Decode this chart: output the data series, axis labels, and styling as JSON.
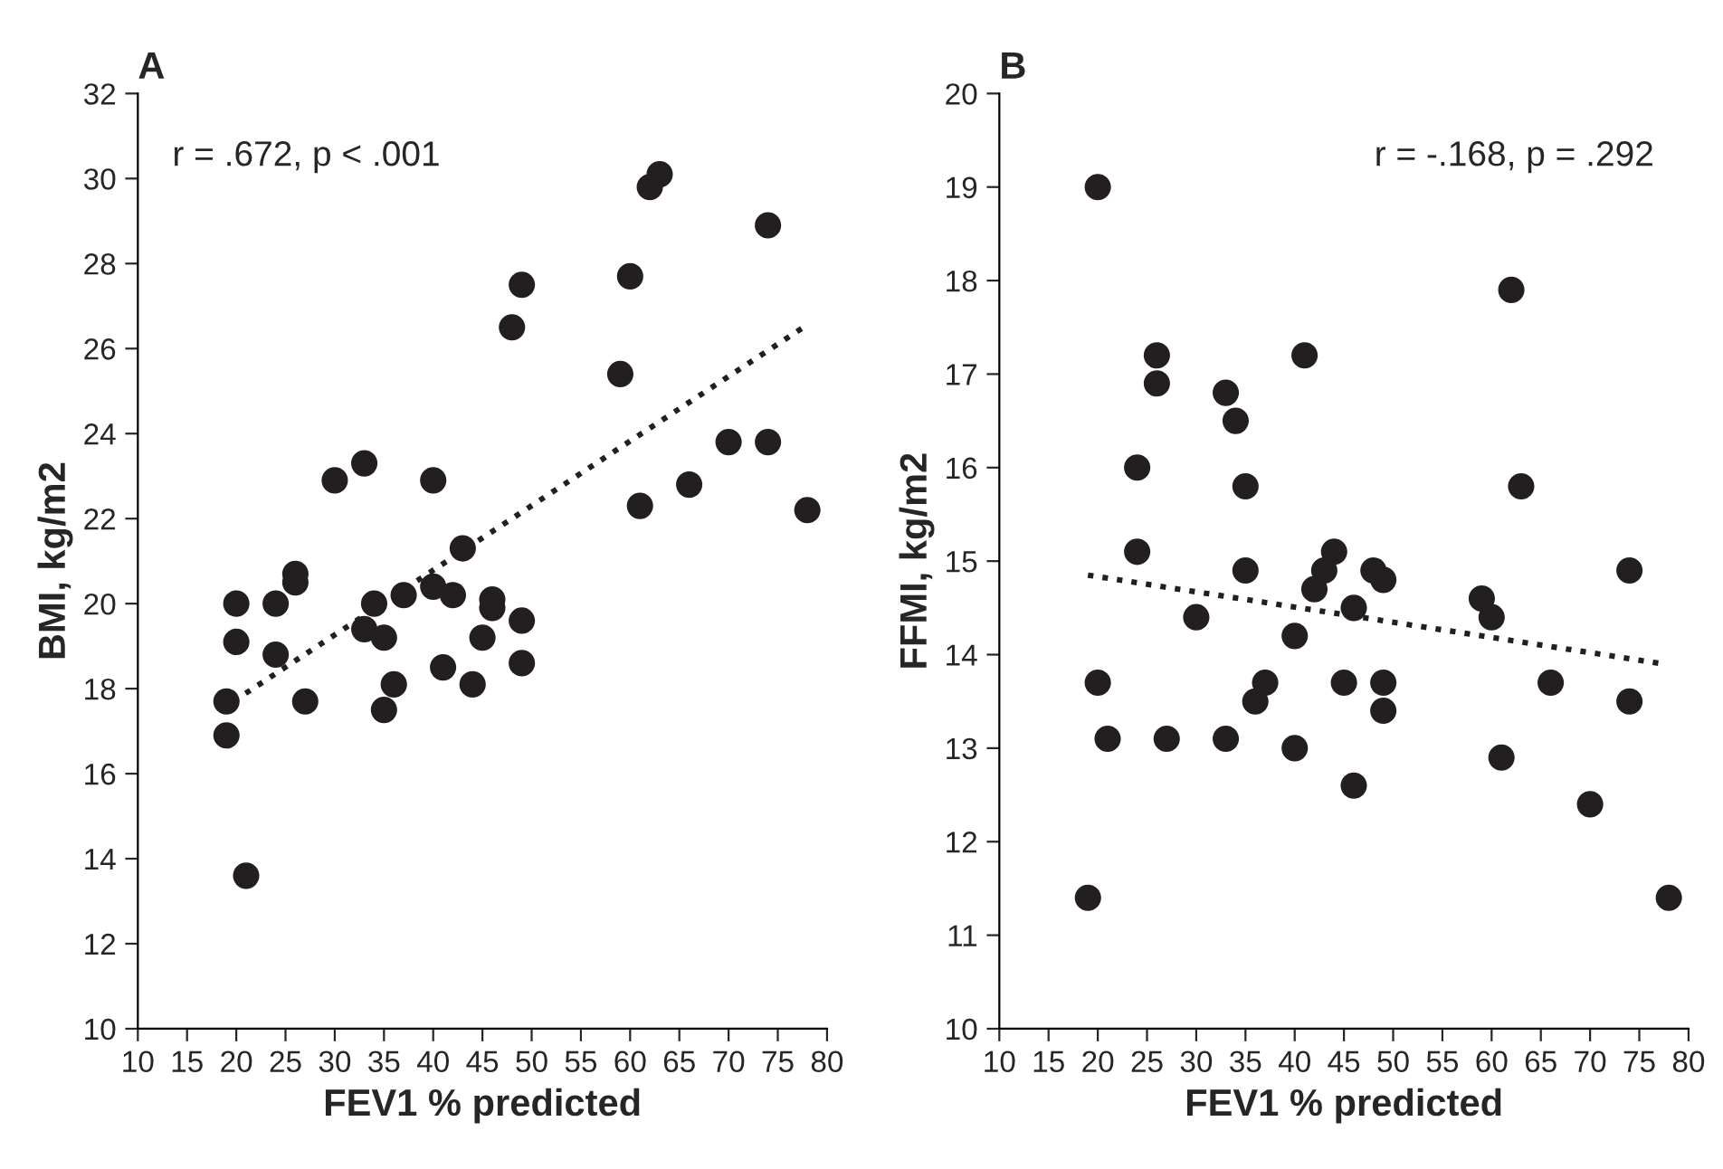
{
  "chart_data": [
    {
      "type": "scatter",
      "title": "A",
      "xlabel": "FEV1 % predicted",
      "ylabel": "BMI, kg/m2",
      "xlim": [
        10,
        80
      ],
      "xticks": [
        10,
        15,
        20,
        25,
        30,
        35,
        40,
        45,
        50,
        55,
        60,
        65,
        70,
        75,
        80
      ],
      "ylim": [
        10,
        32
      ],
      "yticks": [
        10,
        12,
        14,
        16,
        18,
        20,
        22,
        24,
        26,
        28,
        30,
        32
      ],
      "grid": false,
      "annotations": [
        "r = .672, p < .001"
      ],
      "series": [
        {
          "marker": "circle",
          "color": "#231f20",
          "x": [
            19,
            19,
            21,
            20,
            20,
            24,
            24,
            26,
            26,
            27,
            30,
            33,
            33,
            34,
            35,
            36,
            35,
            37,
            41,
            40,
            40,
            42,
            43,
            44,
            45,
            46,
            46,
            49,
            49,
            48,
            49,
            59,
            61,
            60,
            62,
            63,
            66,
            70,
            74,
            74,
            78
          ],
          "values": [
            16.9,
            17.7,
            13.6,
            19.1,
            20.0,
            18.8,
            20.0,
            20.5,
            20.7,
            17.7,
            22.9,
            23.3,
            19.4,
            20.0,
            17.5,
            18.1,
            19.2,
            20.2,
            18.5,
            20.4,
            22.9,
            20.2,
            21.3,
            18.1,
            19.2,
            19.9,
            20.1,
            18.6,
            19.6,
            26.5,
            27.5,
            25.4,
            22.3,
            27.7,
            29.8,
            30.1,
            22.8,
            23.8,
            23.8,
            28.9,
            22.2
          ]
        },
        {
          "type": "line",
          "color": "#231f20",
          "line_style": "dotted",
          "x": [
            19.7,
            77.6
          ],
          "values": [
            17.7,
            26.5
          ]
        }
      ]
    },
    {
      "type": "scatter",
      "title": "B",
      "xlabel": "FEV1 % predicted",
      "ylabel": "FFMI, kg/m2",
      "xlim": [
        10,
        80
      ],
      "xticks": [
        10,
        15,
        20,
        25,
        30,
        35,
        40,
        45,
        50,
        55,
        60,
        65,
        70,
        75,
        80
      ],
      "ylim": [
        10,
        20
      ],
      "yticks": [
        10,
        11,
        12,
        13,
        14,
        15,
        16,
        17,
        18,
        19,
        20
      ],
      "grid": false,
      "annotations": [
        "r = -.168, p = .292"
      ],
      "series": [
        {
          "marker": "circle",
          "color": "#231f20",
          "x": [
            19,
            20,
            20,
            21,
            24,
            24,
            26,
            26,
            27,
            30,
            33,
            33,
            34,
            35,
            35,
            36,
            37,
            40,
            40,
            41,
            42,
            43,
            44,
            45,
            46,
            46,
            48,
            49,
            49,
            49,
            59,
            60,
            61,
            62,
            63,
            66,
            70,
            74,
            74,
            78
          ],
          "values": [
            11.4,
            13.7,
            19.0,
            13.1,
            15.1,
            16.0,
            16.9,
            17.2,
            13.1,
            14.4,
            13.1,
            16.8,
            16.5,
            14.9,
            15.8,
            13.5,
            13.7,
            13.0,
            14.2,
            17.2,
            14.7,
            14.9,
            15.1,
            13.7,
            12.6,
            14.5,
            14.9,
            14.8,
            13.4,
            13.7,
            14.6,
            14.4,
            12.9,
            17.9,
            15.8,
            13.7,
            12.4,
            13.5,
            14.9,
            11.4
          ]
        },
        {
          "type": "line",
          "color": "#231f20",
          "line_style": "dotted",
          "x": [
            19,
            77.5
          ],
          "values": [
            14.85,
            13.9
          ]
        }
      ]
    }
  ]
}
